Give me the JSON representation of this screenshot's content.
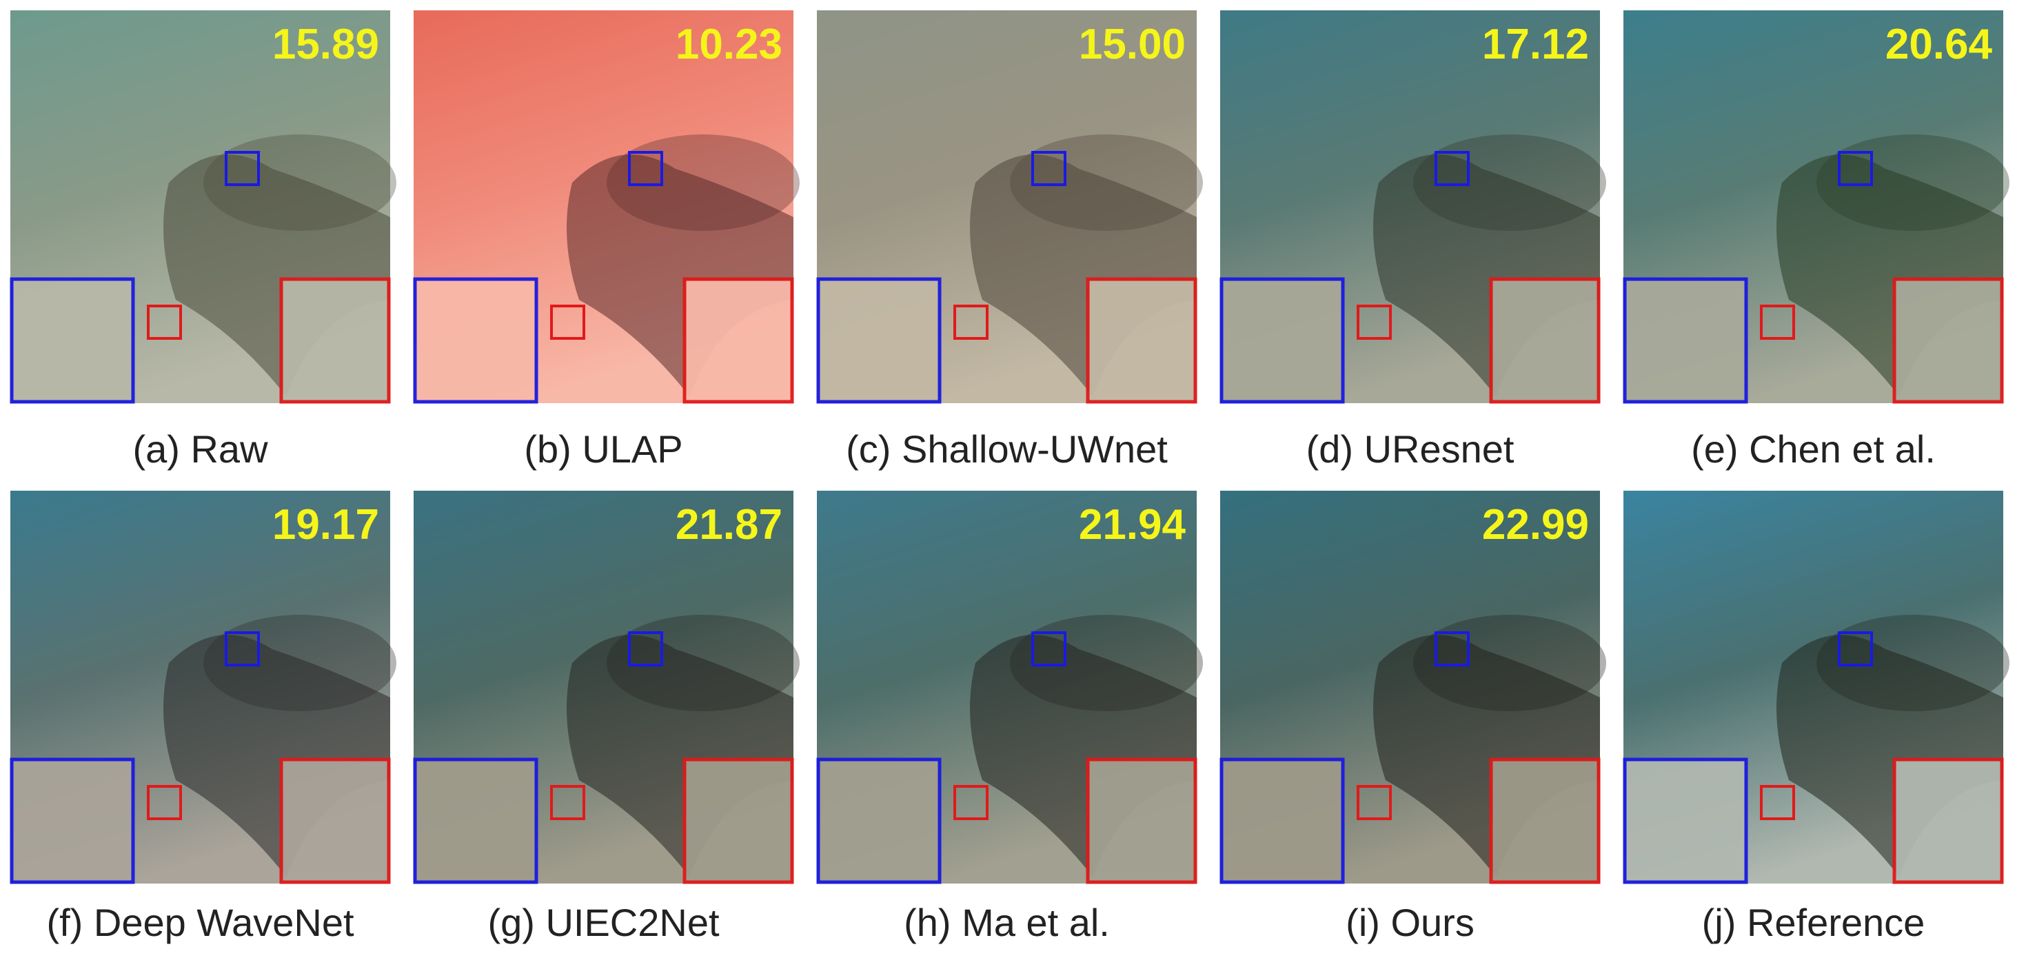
{
  "panels": [
    {
      "caption": "(a) Raw",
      "score": "15.89"
    },
    {
      "caption": "(b) ULAP",
      "score": "10.23"
    },
    {
      "caption": "(c) Shallow-UWnet",
      "score": "15.00"
    },
    {
      "caption": "(d) UResnet",
      "score": "17.12"
    },
    {
      "caption": "(e) Chen et al.",
      "score": "20.64"
    },
    {
      "caption": "(f) Deep WaveNet",
      "score": "19.17"
    },
    {
      "caption": "(g) UIEC2Net",
      "score": "21.87"
    },
    {
      "caption": "(h) Ma et al.",
      "score": "21.94"
    },
    {
      "caption": "(i) Ours",
      "score": "22.99"
    },
    {
      "caption": "(j) Reference"
    }
  ]
}
